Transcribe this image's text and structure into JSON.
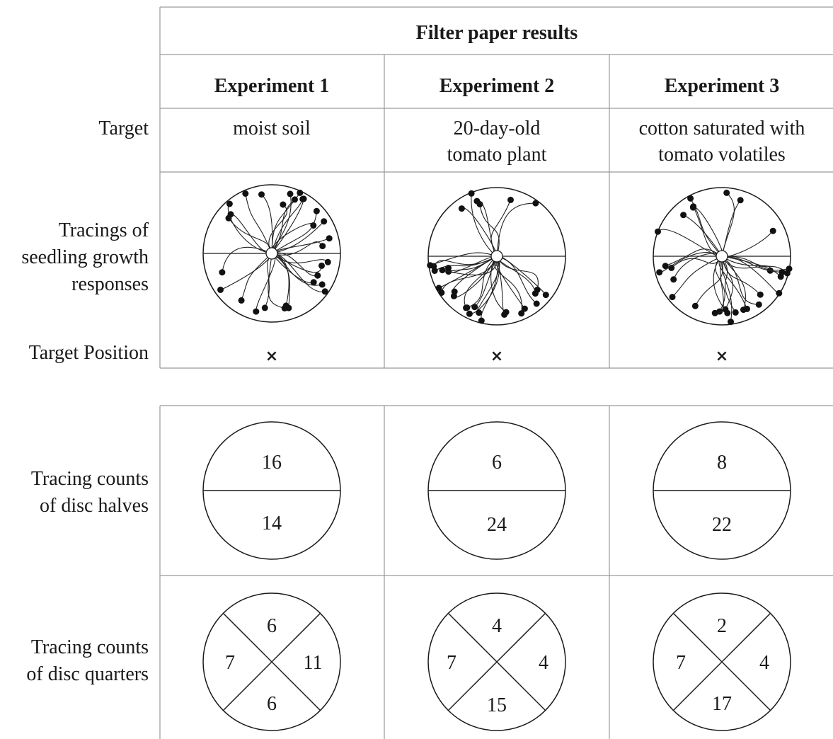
{
  "top_table": {
    "header": "Filter paper results",
    "experiments": [
      {
        "label": "Experiment 1",
        "target": [
          "moist soil"
        ],
        "half_counts": {
          "top": "16",
          "bottom": "14"
        },
        "quarter_counts": {
          "top": "6",
          "left": "7",
          "right": "11",
          "bottom": "6"
        }
      },
      {
        "label": "Experiment 2",
        "target": [
          "20-day-old",
          "tomato plant"
        ],
        "half_counts": {
          "top": "6",
          "bottom": "24"
        },
        "quarter_counts": {
          "top": "4",
          "left": "7",
          "right": "4",
          "bottom": "15"
        }
      },
      {
        "label": "Experiment 3",
        "target": [
          "cotton saturated with",
          "tomato volatiles"
        ],
        "half_counts": {
          "top": "8",
          "bottom": "22"
        },
        "quarter_counts": {
          "top": "2",
          "left": "7",
          "right": "4",
          "bottom": "17"
        }
      }
    ],
    "row_labels": {
      "target": [
        "Target"
      ],
      "tracings": [
        "Tracings of",
        "seedling growth",
        "responses"
      ],
      "target_position": [
        "Target Position"
      ],
      "halves": [
        "Tracing counts",
        "of disc halves"
      ],
      "quarters": [
        "Tracing counts",
        "of disc quarters"
      ]
    },
    "target_marker": "×"
  }
}
